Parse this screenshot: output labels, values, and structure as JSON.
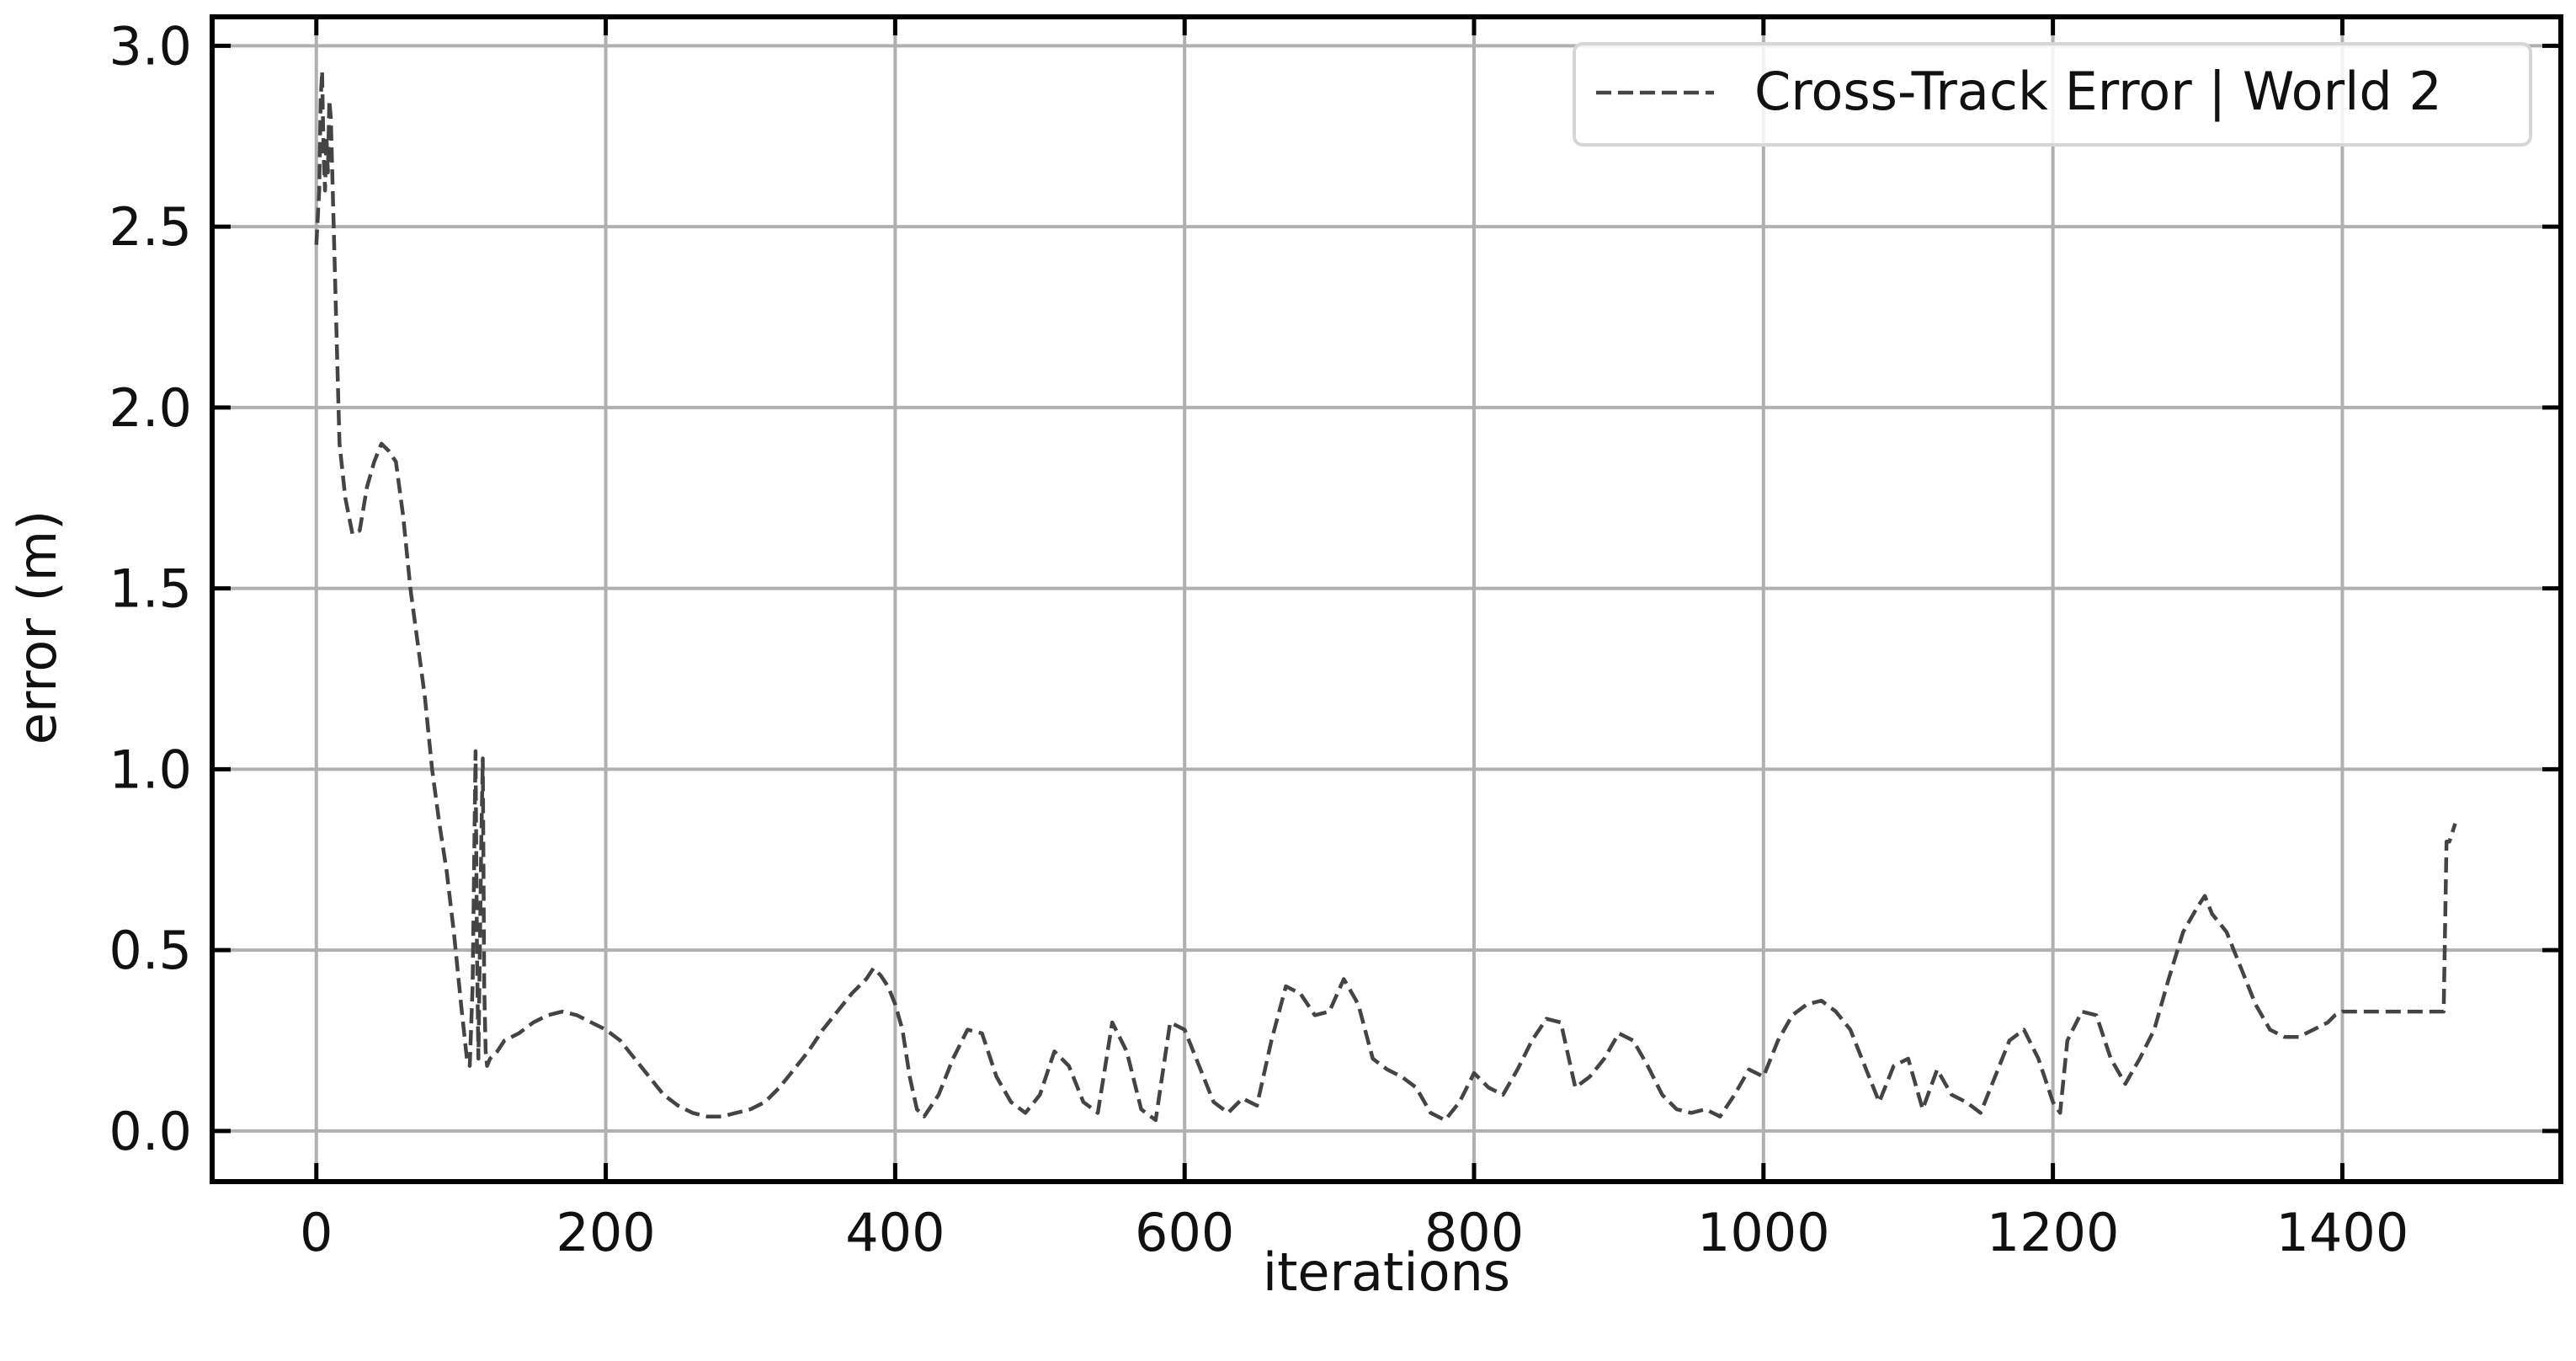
{
  "chart_data": {
    "type": "line",
    "title": "",
    "xlabel": "iterations",
    "ylabel": "error (m)",
    "xlim": [
      -72,
      1551
    ],
    "ylim": [
      -0.14,
      3.08
    ],
    "xticks": [
      0,
      200,
      400,
      600,
      800,
      1000,
      1200,
      1400
    ],
    "yticks": [
      0.0,
      0.5,
      1.0,
      1.5,
      2.0,
      2.5,
      3.0
    ],
    "xtick_labels": [
      "0",
      "200",
      "400",
      "600",
      "800",
      "1000",
      "1200",
      "1400"
    ],
    "ytick_labels": [
      "0.0",
      "0.5",
      "1.0",
      "1.5",
      "2.0",
      "2.5",
      "3.0"
    ],
    "grid": true,
    "legend_position": "top-right",
    "colors": {
      "line": "#444444",
      "grid": "#b0b0b0",
      "axes": "#000000"
    },
    "series": [
      {
        "name": "Cross-Track Error | World 2",
        "style": "dashed",
        "x": [
          0,
          2,
          3,
          4,
          5,
          6,
          7,
          8,
          9,
          10,
          12,
          14,
          16,
          20,
          25,
          30,
          35,
          40,
          45,
          50,
          55,
          60,
          65,
          70,
          75,
          80,
          85,
          90,
          95,
          100,
          104,
          106,
          108,
          110,
          111,
          112,
          114,
          115,
          116,
          117,
          118,
          120,
          125,
          130,
          140,
          150,
          160,
          170,
          180,
          190,
          200,
          210,
          220,
          230,
          240,
          250,
          260,
          270,
          280,
          290,
          300,
          310,
          320,
          330,
          340,
          350,
          360,
          370,
          380,
          385,
          390,
          395,
          400,
          405,
          410,
          415,
          420,
          425,
          430,
          440,
          450,
          460,
          470,
          480,
          490,
          500,
          510,
          520,
          530,
          540,
          550,
          560,
          570,
          580,
          590,
          600,
          610,
          620,
          630,
          640,
          650,
          660,
          670,
          680,
          690,
          700,
          710,
          720,
          730,
          740,
          750,
          760,
          770,
          780,
          790,
          800,
          810,
          820,
          830,
          840,
          850,
          860,
          870,
          880,
          890,
          900,
          910,
          920,
          930,
          940,
          950,
          960,
          970,
          980,
          990,
          1000,
          1010,
          1020,
          1030,
          1040,
          1050,
          1060,
          1070,
          1080,
          1090,
          1100,
          1110,
          1120,
          1130,
          1140,
          1150,
          1160,
          1170,
          1180,
          1190,
          1200,
          1205,
          1210,
          1220,
          1230,
          1240,
          1250,
          1260,
          1270,
          1280,
          1290,
          1300,
          1305,
          1310,
          1320,
          1330,
          1340,
          1350,
          1360,
          1370,
          1380,
          1390,
          1395,
          1400,
          1420,
          1440,
          1460,
          1470,
          1472,
          1474,
          1478
        ],
        "y": [
          2.45,
          2.6,
          2.85,
          2.93,
          2.7,
          2.6,
          2.75,
          2.65,
          2.85,
          2.8,
          2.5,
          2.2,
          1.9,
          1.75,
          1.65,
          1.66,
          1.78,
          1.85,
          1.9,
          1.88,
          1.85,
          1.7,
          1.5,
          1.35,
          1.2,
          1.0,
          0.85,
          0.72,
          0.55,
          0.35,
          0.2,
          0.18,
          0.4,
          1.05,
          0.5,
          0.2,
          0.8,
          1.03,
          0.4,
          0.22,
          0.18,
          0.2,
          0.22,
          0.25,
          0.27,
          0.3,
          0.32,
          0.33,
          0.32,
          0.3,
          0.28,
          0.25,
          0.2,
          0.15,
          0.1,
          0.07,
          0.05,
          0.04,
          0.04,
          0.05,
          0.06,
          0.08,
          0.12,
          0.17,
          0.22,
          0.28,
          0.33,
          0.38,
          0.42,
          0.45,
          0.43,
          0.4,
          0.35,
          0.28,
          0.15,
          0.06,
          0.04,
          0.07,
          0.1,
          0.2,
          0.28,
          0.27,
          0.15,
          0.08,
          0.05,
          0.1,
          0.22,
          0.18,
          0.08,
          0.05,
          0.3,
          0.22,
          0.06,
          0.03,
          0.3,
          0.28,
          0.18,
          0.08,
          0.05,
          0.09,
          0.07,
          0.25,
          0.4,
          0.38,
          0.32,
          0.33,
          0.42,
          0.35,
          0.2,
          0.17,
          0.15,
          0.12,
          0.05,
          0.03,
          0.08,
          0.16,
          0.12,
          0.1,
          0.17,
          0.25,
          0.31,
          0.3,
          0.12,
          0.15,
          0.2,
          0.27,
          0.25,
          0.18,
          0.1,
          0.06,
          0.05,
          0.06,
          0.04,
          0.1,
          0.17,
          0.15,
          0.25,
          0.32,
          0.35,
          0.36,
          0.33,
          0.28,
          0.18,
          0.08,
          0.18,
          0.2,
          0.06,
          0.17,
          0.1,
          0.08,
          0.05,
          0.15,
          0.25,
          0.28,
          0.2,
          0.08,
          0.05,
          0.25,
          0.33,
          0.32,
          0.2,
          0.13,
          0.2,
          0.28,
          0.42,
          0.55,
          0.62,
          0.65,
          0.6,
          0.55,
          0.45,
          0.35,
          0.28,
          0.26,
          0.26,
          0.28,
          0.3,
          0.32,
          0.33,
          0.33,
          0.33,
          0.33,
          0.33,
          0.8,
          0.8,
          0.85
        ]
      }
    ]
  }
}
